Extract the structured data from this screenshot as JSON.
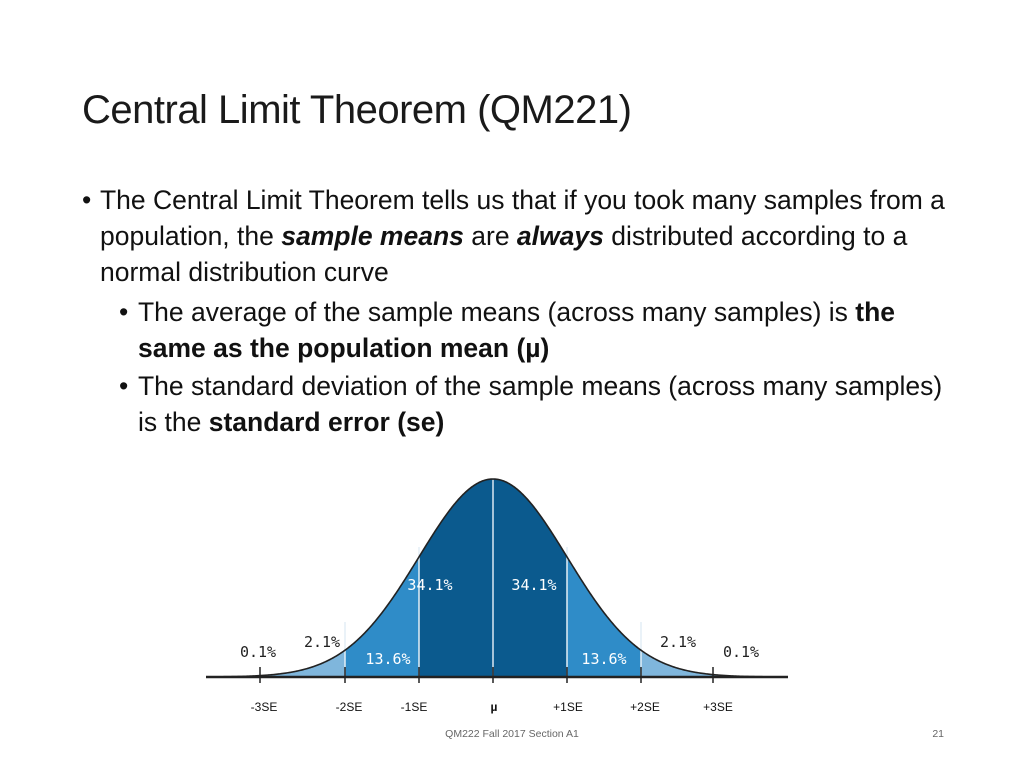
{
  "slide": {
    "title": "Central Limit Theorem (QM221)",
    "footer": "QM222 Fall 2017 Section A1",
    "page_number": "21"
  },
  "bullets": {
    "b1": {
      "t1": "The Central Limit Theorem tells us that if you took many samples from a population, the ",
      "t2": "sample means",
      "t3": " are ",
      "t4": "always",
      "t5": " distributed according to a normal distribution curve"
    },
    "b2": {
      "t1": "The average of the sample means (across many samples) is ",
      "t2": "the same as the population mean (µ)"
    },
    "b3": {
      "t1": "The standard deviation of the sample means (across many samples) is the ",
      "t2": "standard error (se)"
    }
  },
  "figure": {
    "percent_labels": {
      "p01_left": "0.1%",
      "p21_left": "2.1%",
      "p136_left": "13.6%",
      "p341_left": "34.1%",
      "p341_right": "34.1%",
      "p136_right": "13.6%",
      "p21_right": "2.1%",
      "p01_right": "0.1%"
    },
    "axis_labels": {
      "m3": "-3SE",
      "m2": "-2SE",
      "m1": "-1SE",
      "mu": "µ",
      "p1": "+1SE",
      "p2": "+2SE",
      "p3": "+3SE"
    },
    "colors": {
      "center": "#0b5a8e",
      "one_sd": "#2f8cc8",
      "two_sd": "#7fb6dc",
      "curve": "#222222"
    }
  }
}
